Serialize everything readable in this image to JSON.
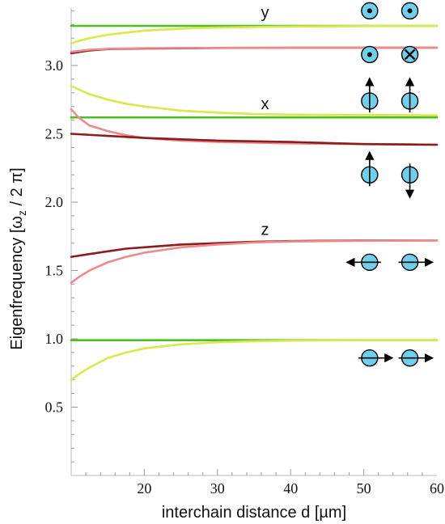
{
  "chart_data": {
    "type": "line",
    "title": "",
    "xlabel": "interchain distance d [µm]",
    "ylabel": "Eigenfrequency [ω",
    "ylabel_sub": "z",
    "ylabel_tail": " / 2 π]",
    "xlim": [
      10,
      60
    ],
    "ylim": [
      0,
      3.42
    ],
    "x_ticks": [
      20,
      30,
      40,
      50,
      60
    ],
    "x_tick_labels": [
      "20",
      "30",
      "40",
      "50",
      "60"
    ],
    "y_ticks": [
      0.5,
      1.0,
      1.5,
      2.0,
      2.5,
      3.0
    ],
    "y_tick_labels": [
      "0.5",
      "1.0",
      "1.5",
      "2.0",
      "2.5",
      "3.0"
    ],
    "grid": false,
    "colors": {
      "green": "#4cbf22",
      "yellow": "#d9e84a",
      "pink": "#f08a8a",
      "darkred": "#8c1c1c",
      "ion": "#6fd0ec"
    },
    "annotations": [
      {
        "text": "y",
        "x": 36.5,
        "y": 3.35
      },
      {
        "text": "x",
        "x": 36.5,
        "y": 2.68
      },
      {
        "text": "z",
        "x": 36.5,
        "y": 1.76
      }
    ],
    "series": [
      {
        "color": "green",
        "x": [
          10,
          60
        ],
        "y": [
          3.29,
          3.29
        ]
      },
      {
        "color": "yellow",
        "x": [
          10,
          11,
          12.5,
          15,
          17.5,
          20,
          25,
          30,
          40,
          50,
          60
        ],
        "y": [
          3.16,
          3.18,
          3.2,
          3.225,
          3.24,
          3.255,
          3.27,
          3.278,
          3.285,
          3.288,
          3.29
        ]
      },
      {
        "color": "darkred",
        "x": [
          10,
          12.5,
          15,
          20,
          30,
          40,
          60
        ],
        "y": [
          3.09,
          3.11,
          3.12,
          3.125,
          3.128,
          3.13,
          3.13
        ]
      },
      {
        "color": "pink",
        "x": [
          10,
          12.5,
          15,
          20,
          30,
          40,
          60
        ],
        "y": [
          3.1,
          3.115,
          3.122,
          3.127,
          3.129,
          3.13,
          3.13
        ]
      },
      {
        "color": "yellow",
        "x": [
          10,
          12.5,
          15,
          17.5,
          20,
          25,
          30,
          35,
          40,
          50,
          60
        ],
        "y": [
          2.85,
          2.79,
          2.75,
          2.72,
          2.7,
          2.67,
          2.655,
          2.645,
          2.64,
          2.637,
          2.635
        ]
      },
      {
        "color": "green",
        "x": [
          10,
          60
        ],
        "y": [
          2.62,
          2.62
        ]
      },
      {
        "color": "pink",
        "x": [
          10,
          11,
          12.5,
          15,
          17.5,
          20,
          25,
          30,
          40,
          50,
          60
        ],
        "y": [
          2.68,
          2.62,
          2.56,
          2.52,
          2.49,
          2.47,
          2.45,
          2.44,
          2.43,
          2.425,
          2.42
        ]
      },
      {
        "color": "darkred",
        "x": [
          10,
          20,
          30,
          40,
          50,
          60
        ],
        "y": [
          2.5,
          2.47,
          2.45,
          2.44,
          2.425,
          2.42
        ]
      },
      {
        "color": "darkred",
        "x": [
          10,
          12.5,
          15,
          17.5,
          20,
          25,
          30,
          35,
          40,
          50,
          60
        ],
        "y": [
          1.6,
          1.62,
          1.64,
          1.66,
          1.67,
          1.69,
          1.7,
          1.71,
          1.715,
          1.72,
          1.72
        ]
      },
      {
        "color": "pink",
        "x": [
          10,
          11,
          12.5,
          15,
          17.5,
          20,
          25,
          30,
          35,
          40,
          50,
          60
        ],
        "y": [
          1.41,
          1.45,
          1.5,
          1.56,
          1.6,
          1.63,
          1.67,
          1.69,
          1.705,
          1.712,
          1.718,
          1.72
        ]
      },
      {
        "color": "green",
        "x": [
          10,
          60
        ],
        "y": [
          0.99,
          0.99
        ]
      },
      {
        "color": "yellow",
        "x": [
          10,
          11,
          12.5,
          15,
          17.5,
          20,
          25,
          30,
          35,
          40,
          50,
          60
        ],
        "y": [
          0.7,
          0.74,
          0.79,
          0.86,
          0.9,
          0.93,
          0.96,
          0.975,
          0.983,
          0.987,
          0.99,
          0.99
        ]
      }
    ],
    "mode_icons": [
      {
        "mode": "y-in-phase",
        "y": 3.4,
        "ions": [
          {
            "x": 50.8,
            "symbol": "dot"
          },
          {
            "x": 56.3,
            "symbol": "dot"
          }
        ]
      },
      {
        "mode": "y-out-of-phase",
        "y": 3.08,
        "ions": [
          {
            "x": 50.8,
            "symbol": "dot"
          },
          {
            "x": 56.3,
            "symbol": "cross"
          }
        ]
      },
      {
        "mode": "x-in-phase",
        "y": 2.74,
        "ions": [
          {
            "x": 50.8,
            "arrow": "up"
          },
          {
            "x": 56.3,
            "arrow": "up"
          }
        ]
      },
      {
        "mode": "x-out-of-phase",
        "y": 2.2,
        "ions": [
          {
            "x": 50.8,
            "arrow": "up"
          },
          {
            "x": 56.3,
            "arrow": "down"
          }
        ]
      },
      {
        "mode": "z-out-of-phase",
        "y": 1.56,
        "ions": [
          {
            "x": 50.8,
            "arrow": "left"
          },
          {
            "x": 56.3,
            "arrow": "right"
          }
        ]
      },
      {
        "mode": "z-in-phase",
        "y": 0.86,
        "ions": [
          {
            "x": 50.8,
            "arrow": "right"
          },
          {
            "x": 56.3,
            "arrow": "right"
          }
        ]
      }
    ]
  }
}
